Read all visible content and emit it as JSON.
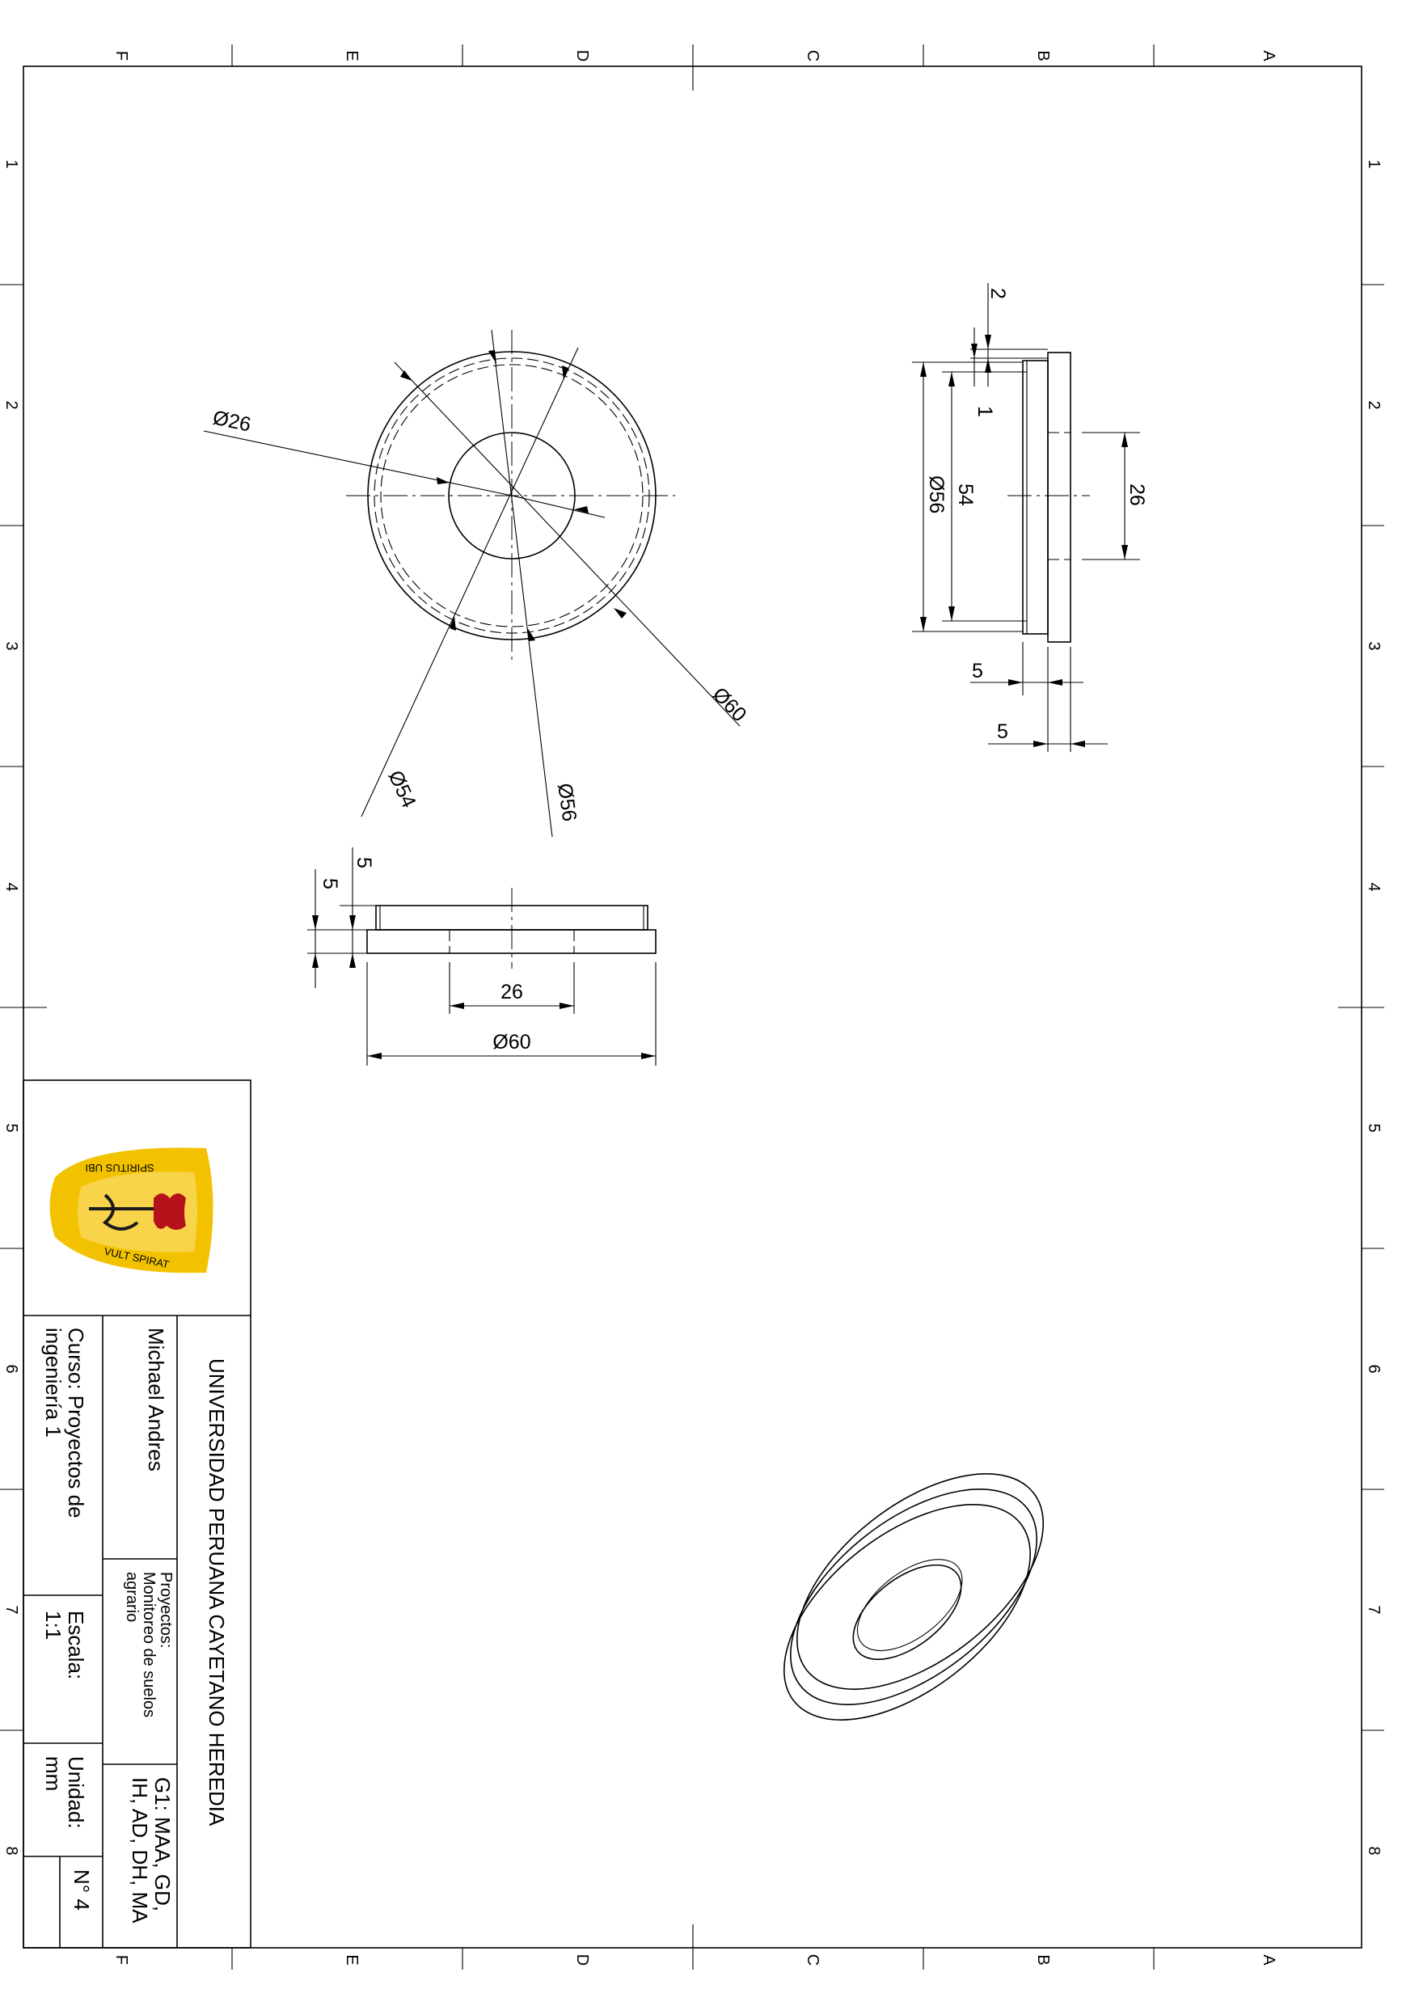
{
  "zone_columns": [
    "F",
    "E",
    "D",
    "C",
    "B",
    "A"
  ],
  "zone_rows": [
    "1",
    "2",
    "3",
    "4",
    "5",
    "6",
    "7",
    "8"
  ],
  "front_view": {
    "dia_26": "Ø26",
    "dia_54": "Ø54",
    "dia_56": "Ø56",
    "dia_60": "Ø60"
  },
  "side_view": {
    "dim_2": "2",
    "dim_1": "1",
    "dim_54": "54",
    "dia_56": "Ø56",
    "dim_26": "26",
    "dim_5a": "5",
    "dim_5b": "5"
  },
  "bottom_view": {
    "dim_5a": "5",
    "dim_5b": "5",
    "dim_26": "26",
    "dia_60": "Ø60"
  },
  "title_block": {
    "logo_text_top": "SPIRITUS UBI",
    "logo_text_bottom": "VULT SPIRAT",
    "university": "UNIVERSIDAD PERUANA CAYETANO HEREDIA",
    "author": "Michael Andres",
    "course_line1": "Curso: Proyectos de",
    "course_line2": "ingeniería 1",
    "project_line1": "Proyectos:",
    "project_line2": "Monitoreo de suelos",
    "project_line3": "agrario",
    "scale_label": "Escala:",
    "scale_value": "1:1",
    "group_line1": "G1: MAA, GD,",
    "group_line2": "IH, AD, DH, MA",
    "unit_label": "Unidad:",
    "unit_value": "mm",
    "sheet_number": "N° 4"
  },
  "colors": {
    "logo_gold": "#f2c200",
    "logo_red": "#b5121b",
    "logo_dark": "#1a1a1a"
  }
}
